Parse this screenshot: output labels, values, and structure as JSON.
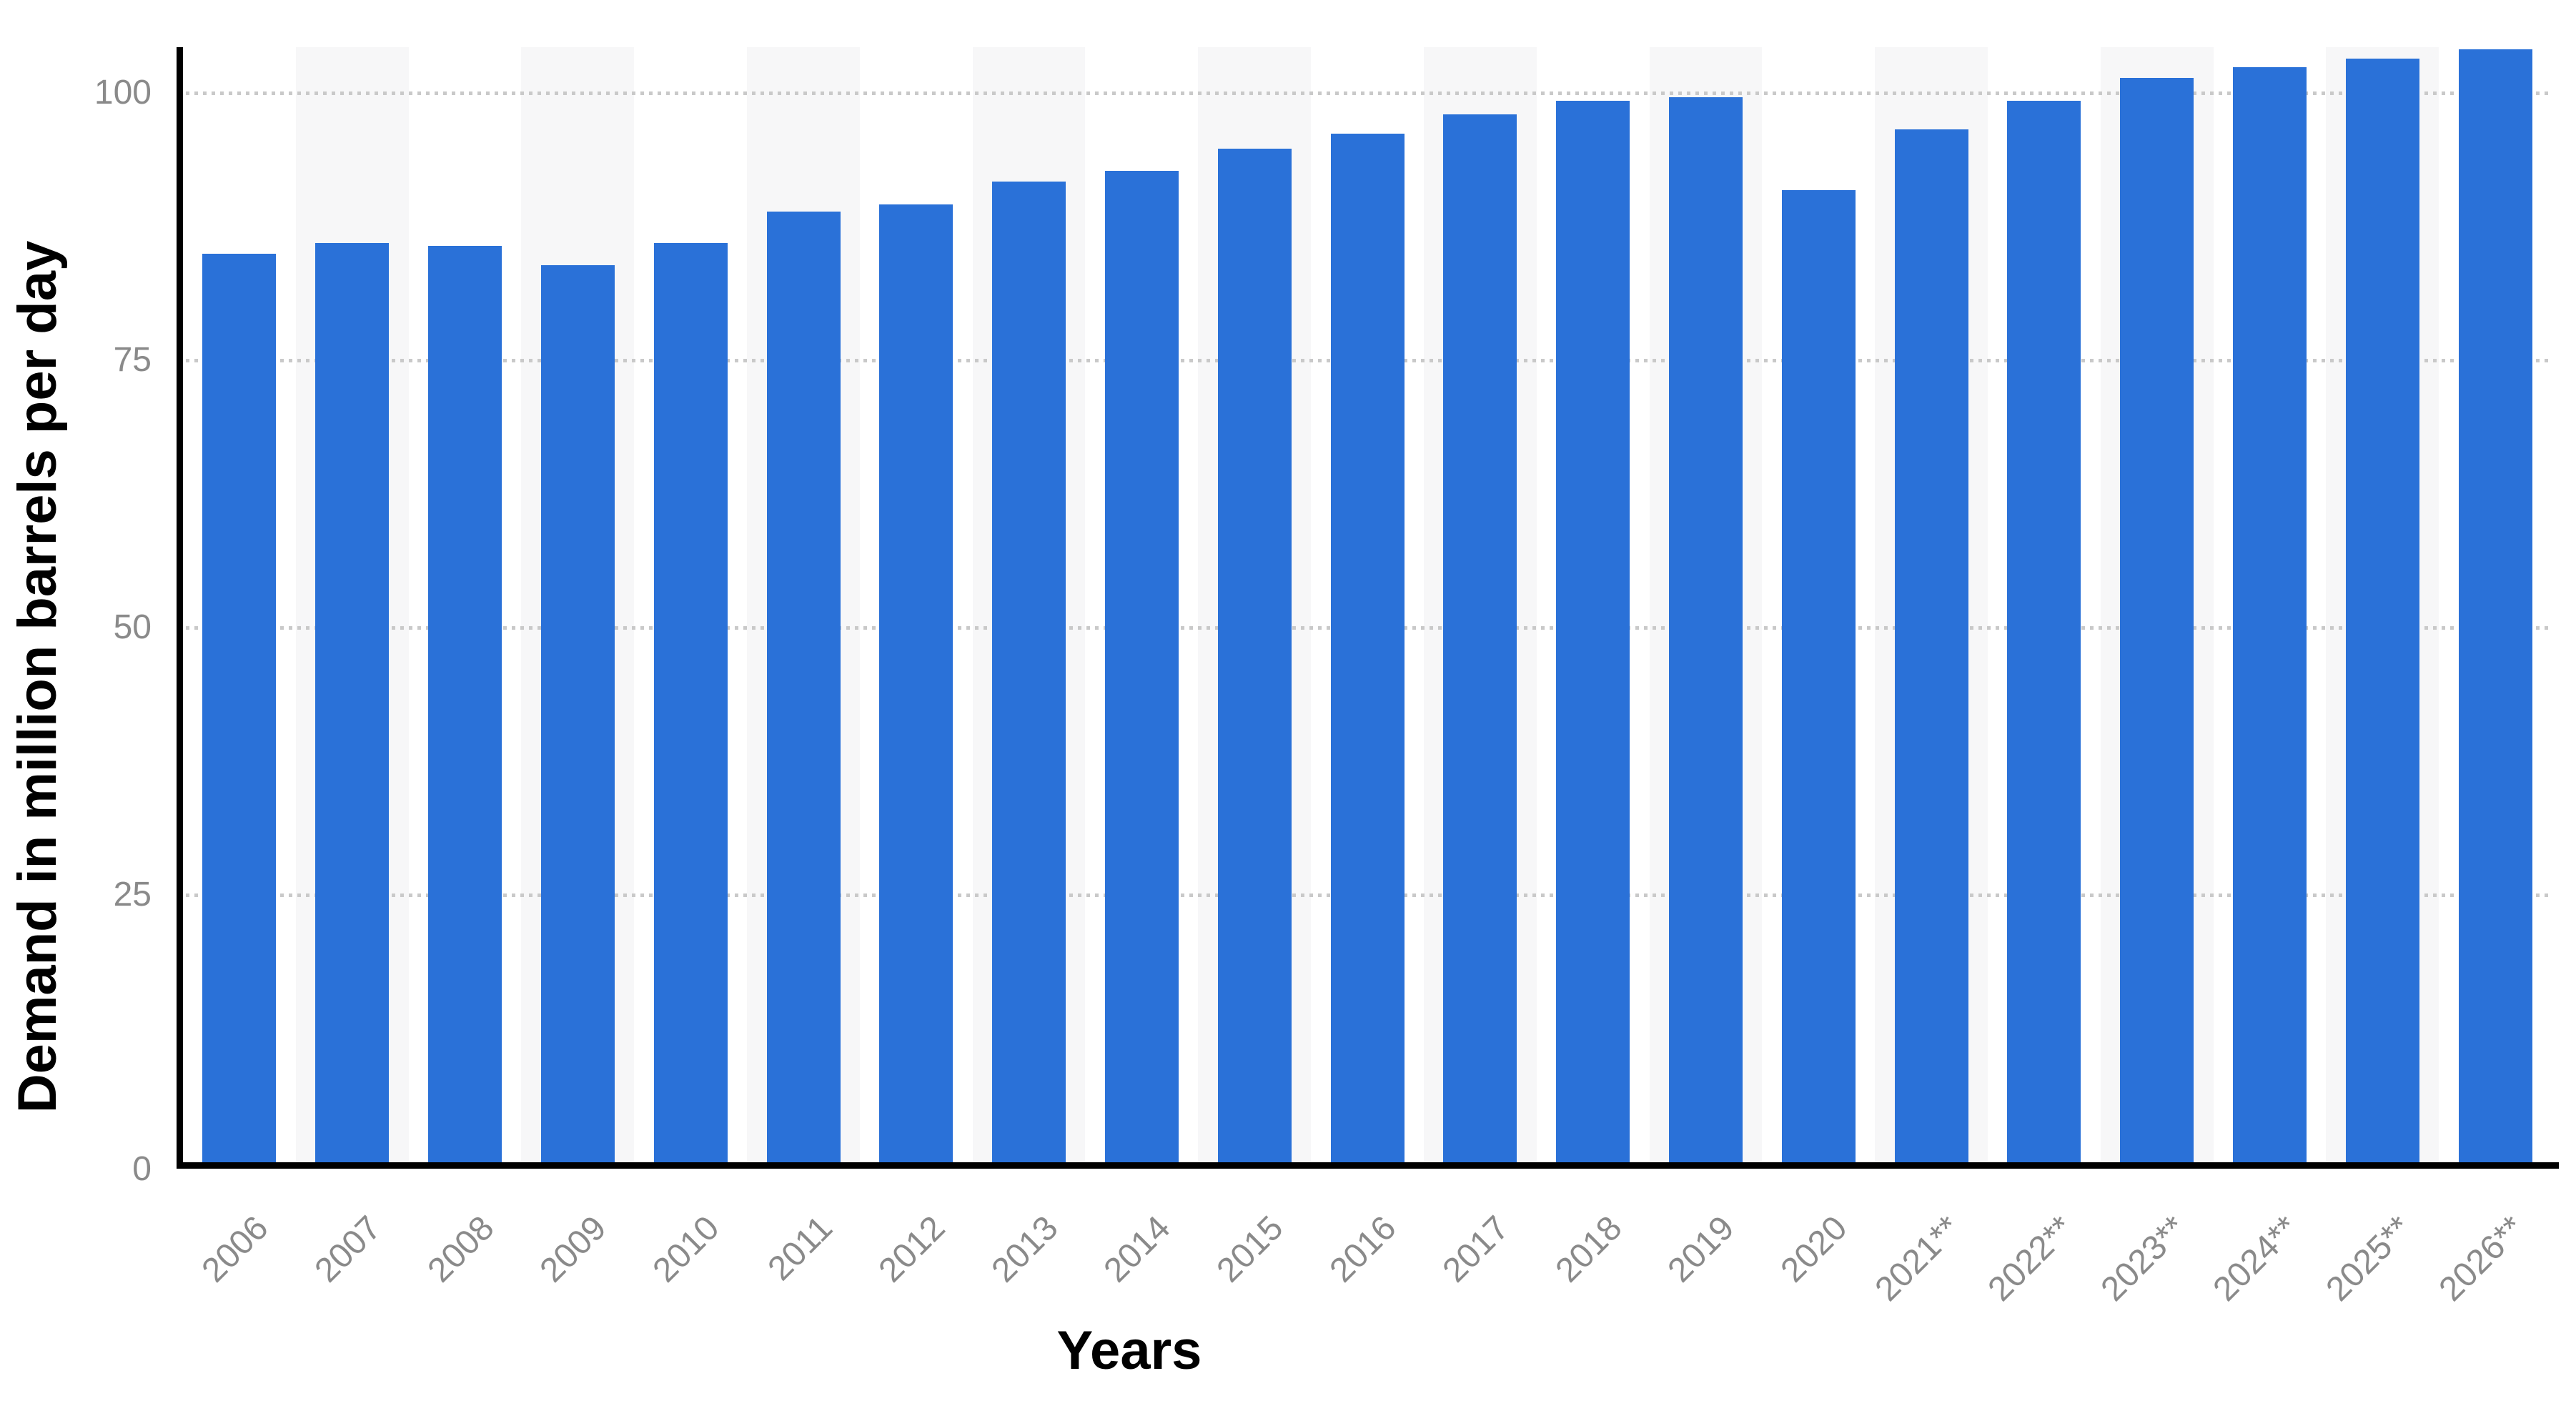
{
  "chart_data": {
    "type": "bar",
    "title": "",
    "categories": [
      "2006",
      "2007",
      "2008",
      "2009",
      "2010",
      "2011",
      "2012",
      "2013",
      "2014",
      "2015",
      "2016",
      "2017",
      "2018",
      "2019",
      "2020",
      "2021**",
      "2022**",
      "2023**",
      "2024**",
      "2025**",
      "2026**"
    ],
    "values": [
      85.0,
      86.0,
      85.7,
      83.9,
      86.0,
      88.9,
      89.6,
      91.7,
      92.7,
      94.8,
      96.2,
      98.0,
      99.3,
      99.6,
      90.9,
      96.6,
      99.3,
      101.4,
      102.4,
      103.2,
      104.1
    ],
    "xlabel": "Years",
    "ylabel": "Demand in million barrels per day",
    "yticks": [
      0,
      25,
      50,
      75,
      100
    ],
    "ylim": [
      0,
      104.3
    ],
    "legend_position": "none",
    "grid": "horizontal dotted lines at y ticks, alternating light column bands behind every second bar",
    "forecast_marker": "**",
    "colors": {
      "bar": "#2a71d8",
      "column_band": "#f7f7f8",
      "gridline_dots": "#c9c9c9",
      "axis_line": "#000000",
      "tick_label": "#8a8a8a",
      "axis_title": "#000000",
      "background": "#ffffff"
    }
  }
}
